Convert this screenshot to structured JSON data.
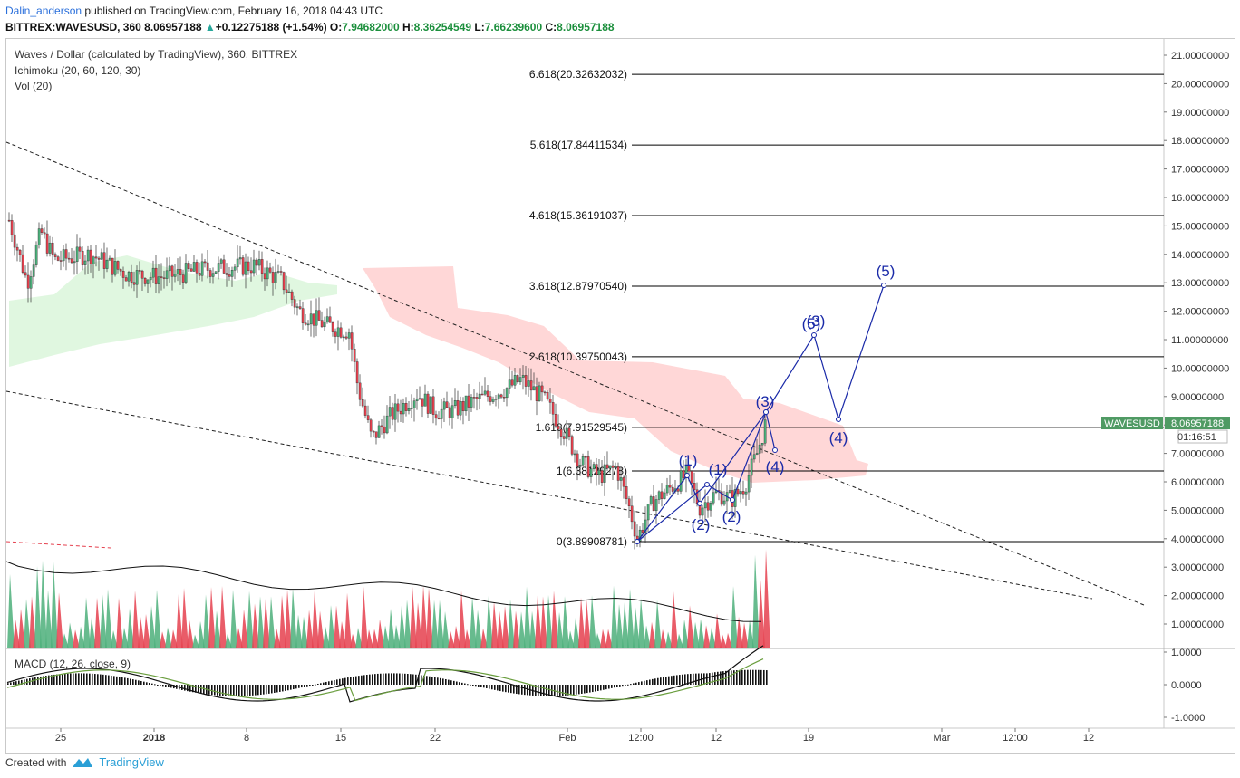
{
  "header": {
    "user": "Dalin_anderson",
    "published_text": "published on TradingView.com, February 16, 2018 04:43 UTC",
    "symbol": "BITTREX:WAVESUSD, 360",
    "last": "8.06957188",
    "change": "+0.12275188 (+1.54%)",
    "o_label": "O:",
    "o_value": "7.94682000",
    "h_label": "H:",
    "h_value": "8.36254549",
    "l_label": "L:",
    "l_value": "7.66239600",
    "c_label": "C:",
    "c_value": "8.06957188"
  },
  "legend": {
    "title": "Waves / Dollar (calculated by TradingView), 360, BITTREX",
    "ichimoku": "Ichimoku (20, 60, 120, 30)",
    "vol": "Vol (20)",
    "macd": "MACD (12, 26, close, 9)"
  },
  "footer": {
    "created_with": "Created with",
    "brand": "TradingView"
  },
  "price_tag": {
    "symbol": "WAVESUSD",
    "value": "8.06957188",
    "countdown": "01:16:51"
  },
  "colors": {
    "up": "#4caf7a",
    "down": "#e5404e",
    "cloud_bear": "#ffd0d0",
    "cloud_bull": "#d8f5d8",
    "wave": "#1a2aa8",
    "fib": "#000000",
    "tag_bg": "#4f9a63"
  },
  "chart_data": {
    "type": "candlestick",
    "symbol": "WAVESUSD",
    "ylim": [
      0.5,
      21.5
    ],
    "x_tick_labels": [
      "25",
      "2018",
      "8",
      "15",
      "22",
      "Feb",
      "12:00",
      "12",
      "19",
      "Mar",
      "12:00",
      "12"
    ],
    "y_tick_labels": [
      "21.00000000",
      "20.00000000",
      "19.00000000",
      "18.00000000",
      "17.00000000",
      "16.00000000",
      "15.00000000",
      "14.00000000",
      "13.00000000",
      "12.00000000",
      "11.00000000",
      "10.00000000",
      "9.00000000",
      "8.00000000",
      "7.00000000",
      "6.00000000",
      "5.00000000",
      "4.00000000",
      "3.00000000",
      "2.00000000",
      "1.00000000"
    ],
    "y_ticks": [
      21,
      20,
      19,
      18,
      17,
      16,
      15,
      14,
      13,
      12,
      11,
      10,
      9,
      8,
      7,
      6,
      5,
      4,
      3,
      2,
      1
    ],
    "fib_levels": [
      {
        "ratio": "6.618",
        "label": "6.618(20.32632032)",
        "value": 20.32632032
      },
      {
        "ratio": "5.618",
        "label": "5.618(17.84411534)",
        "value": 17.84411534
      },
      {
        "ratio": "4.618",
        "label": "4.618(15.36191037)",
        "value": 15.36191037
      },
      {
        "ratio": "3.618",
        "label": "3.618(12.87970540)",
        "value": 12.8797054
      },
      {
        "ratio": "2.618",
        "label": "2.618(10.39750043)",
        "value": 10.39750043
      },
      {
        "ratio": "1.618",
        "label": "1.618(7.91529545)",
        "value": 7.91529545
      },
      {
        "ratio": "1",
        "label": "1(6.38129278)",
        "value": 6.38129278
      },
      {
        "ratio": "0",
        "label": "0(3.89908781)",
        "value": 3.89908781
      }
    ],
    "wave_labels": [
      "(1)",
      "(2)",
      "(1)",
      "(2)",
      "(3)",
      "(4)",
      "(5)",
      "(3)",
      "(4)",
      "(5)"
    ],
    "macd_ticks": [
      "1.0000",
      "0.0000",
      "-1.0000"
    ],
    "macd_tick_values": [
      1,
      0,
      -1
    ],
    "last_price": 8.06957188
  }
}
